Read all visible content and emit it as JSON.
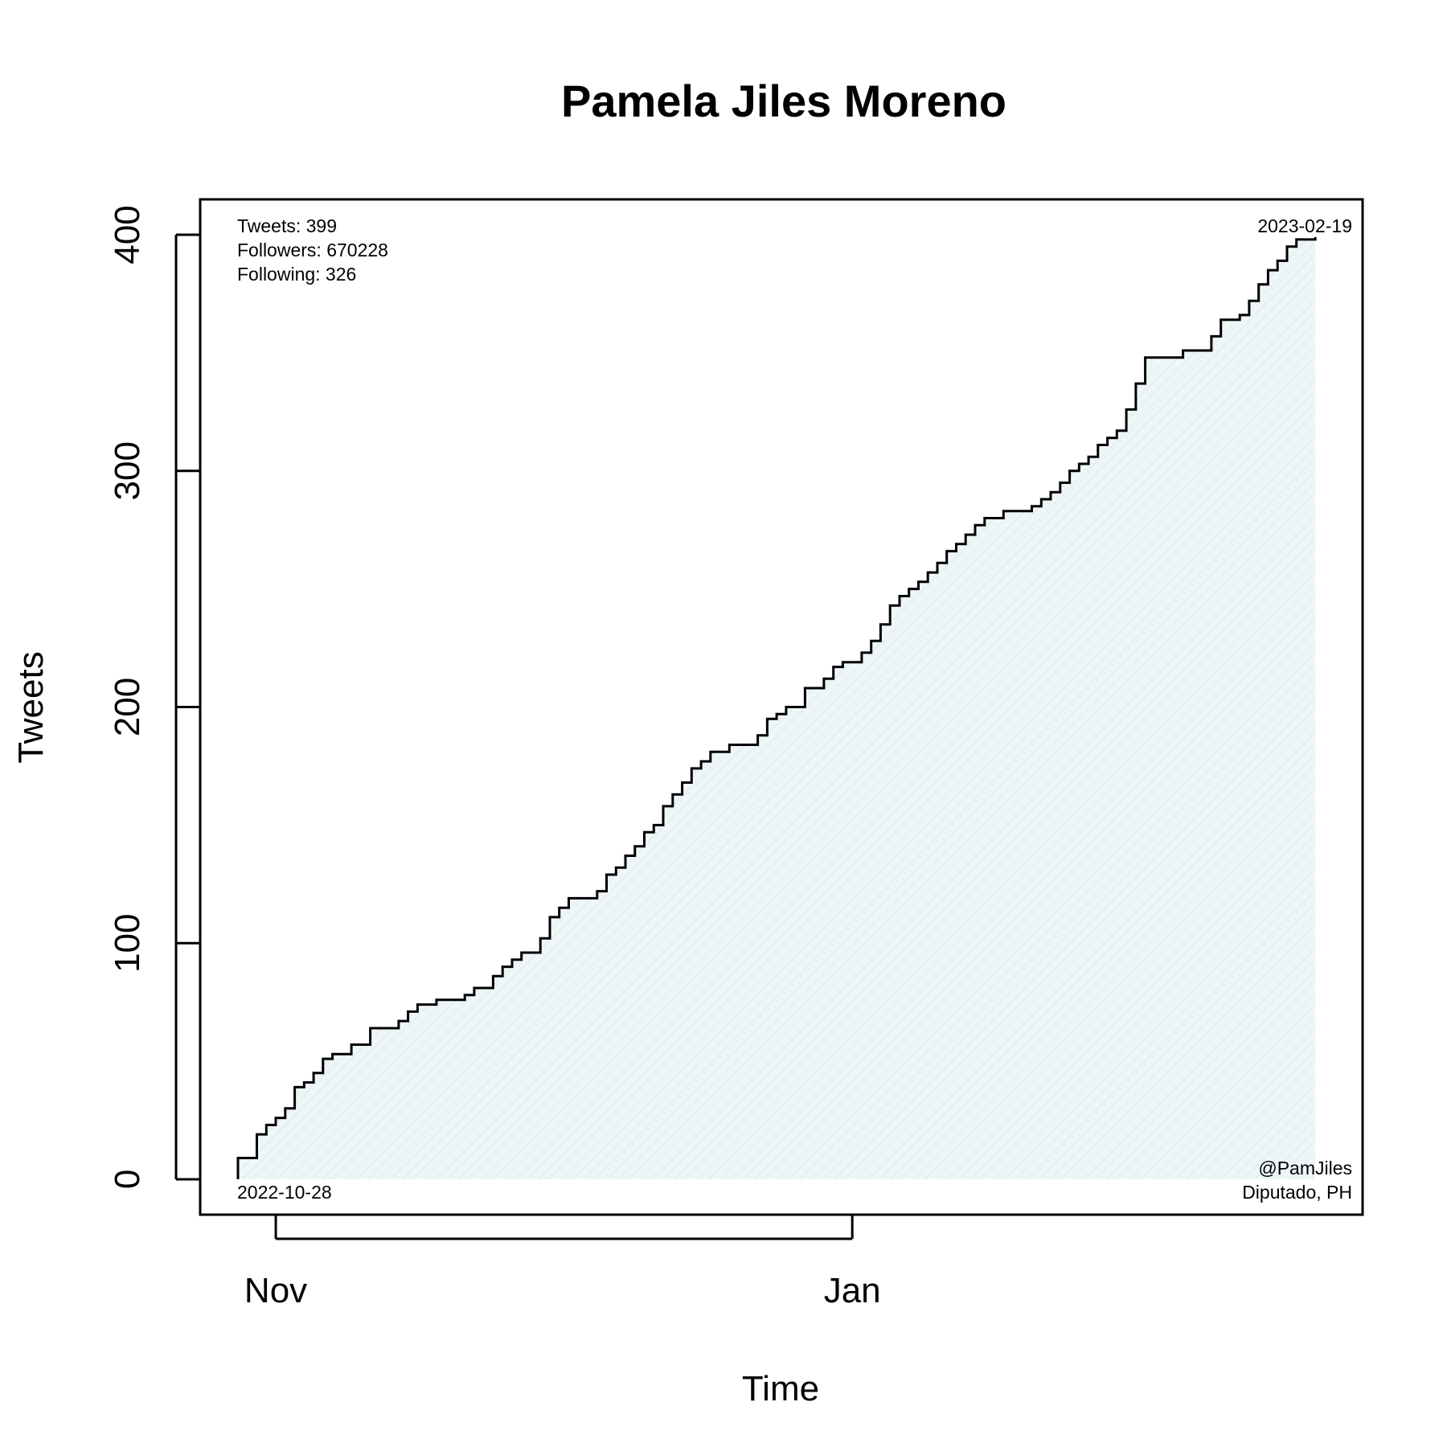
{
  "chart_data": {
    "type": "area",
    "title": "Pamela Jiles Moreno",
    "xlabel": "Time",
    "ylabel": "Tweets",
    "x_range": [
      "2022-10-24",
      "2023-02-24"
    ],
    "ylim": [
      -15,
      415
    ],
    "x_ticks": [
      {
        "date": "2022-11-01",
        "label": "Nov"
      },
      {
        "date": "2023-01-01",
        "label": "Jan"
      }
    ],
    "y_ticks": [
      {
        "value": 0,
        "label": "0"
      },
      {
        "value": 100,
        "label": "100"
      },
      {
        "value": 200,
        "label": "200"
      },
      {
        "value": 300,
        "label": "300"
      },
      {
        "value": 400,
        "label": "400"
      }
    ],
    "grid": false,
    "fill_color": "#eef6f8",
    "hatch_color": "#e0eef2",
    "line_color": "#000000",
    "annotations": {
      "stats": [
        "Tweets: 399",
        "Followers: 670228",
        "Following: 326"
      ],
      "start_date": "2022-10-28",
      "end_date": "2023-02-19",
      "handle": "@PamJiles",
      "role": "Diputado, PH"
    },
    "series": [
      {
        "step": true,
        "points": [
          [
            "2022-10-28",
            0
          ],
          [
            "2022-10-28",
            9
          ],
          [
            "2022-10-30",
            11
          ],
          [
            "2022-10-30",
            19
          ],
          [
            "2022-10-31",
            23
          ],
          [
            "2022-11-01",
            26
          ],
          [
            "2022-11-02",
            30
          ],
          [
            "2022-11-03",
            39
          ],
          [
            "2022-11-04",
            41
          ],
          [
            "2022-11-05",
            45
          ],
          [
            "2022-11-06",
            51
          ],
          [
            "2022-11-07",
            53
          ],
          [
            "2022-11-09",
            57
          ],
          [
            "2022-11-11",
            64
          ],
          [
            "2022-11-14",
            67
          ],
          [
            "2022-11-15",
            71
          ],
          [
            "2022-11-16",
            74
          ],
          [
            "2022-11-18",
            76
          ],
          [
            "2022-11-21",
            78
          ],
          [
            "2022-11-22",
            81
          ],
          [
            "2022-11-24",
            86
          ],
          [
            "2022-11-25",
            90
          ],
          [
            "2022-11-26",
            93
          ],
          [
            "2022-11-27",
            96
          ],
          [
            "2022-11-29",
            102
          ],
          [
            "2022-11-30",
            111
          ],
          [
            "2022-12-01",
            115
          ],
          [
            "2022-12-02",
            119
          ],
          [
            "2022-12-05",
            122
          ],
          [
            "2022-12-06",
            129
          ],
          [
            "2022-12-07",
            132
          ],
          [
            "2022-12-08",
            137
          ],
          [
            "2022-12-09",
            141
          ],
          [
            "2022-12-10",
            147
          ],
          [
            "2022-12-11",
            150
          ],
          [
            "2022-12-12",
            158
          ],
          [
            "2022-12-13",
            163
          ],
          [
            "2022-12-14",
            168
          ],
          [
            "2022-12-15",
            174
          ],
          [
            "2022-12-16",
            177
          ],
          [
            "2022-12-17",
            181
          ],
          [
            "2022-12-19",
            184
          ],
          [
            "2022-12-22",
            188
          ],
          [
            "2022-12-23",
            195
          ],
          [
            "2022-12-24",
            197
          ],
          [
            "2022-12-25",
            200
          ],
          [
            "2022-12-27",
            208
          ],
          [
            "2022-12-29",
            212
          ],
          [
            "2022-12-30",
            217
          ],
          [
            "2022-12-31",
            219
          ],
          [
            "2023-01-02",
            223
          ],
          [
            "2023-01-03",
            228
          ],
          [
            "2023-01-04",
            235
          ],
          [
            "2023-01-05",
            243
          ],
          [
            "2023-01-06",
            247
          ],
          [
            "2023-01-07",
            250
          ],
          [
            "2023-01-08",
            253
          ],
          [
            "2023-01-09",
            257
          ],
          [
            "2023-01-10",
            261
          ],
          [
            "2023-01-11",
            266
          ],
          [
            "2023-01-12",
            269
          ],
          [
            "2023-01-13",
            273
          ],
          [
            "2023-01-14",
            277
          ],
          [
            "2023-01-15",
            280
          ],
          [
            "2023-01-17",
            283
          ],
          [
            "2023-01-20",
            285
          ],
          [
            "2023-01-21",
            288
          ],
          [
            "2023-01-22",
            291
          ],
          [
            "2023-01-23",
            295
          ],
          [
            "2023-01-24",
            300
          ],
          [
            "2023-01-25",
            303
          ],
          [
            "2023-01-26",
            306
          ],
          [
            "2023-01-27",
            311
          ],
          [
            "2023-01-28",
            314
          ],
          [
            "2023-01-29",
            317
          ],
          [
            "2023-01-30",
            326
          ],
          [
            "2023-01-31",
            337
          ],
          [
            "2023-02-01",
            348
          ],
          [
            "2023-02-05",
            351
          ],
          [
            "2023-02-08",
            357
          ],
          [
            "2023-02-09",
            364
          ],
          [
            "2023-02-11",
            366
          ],
          [
            "2023-02-12",
            372
          ],
          [
            "2023-02-13",
            379
          ],
          [
            "2023-02-14",
            385
          ],
          [
            "2023-02-15",
            389
          ],
          [
            "2023-02-16",
            395
          ],
          [
            "2023-02-17",
            398
          ],
          [
            "2023-02-19",
            399
          ]
        ]
      }
    ]
  }
}
